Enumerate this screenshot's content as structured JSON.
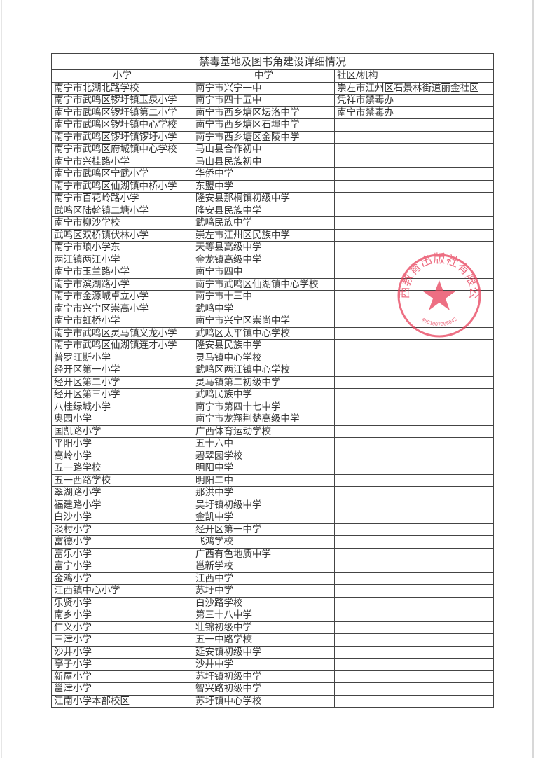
{
  "title": "禁毒基地及图书角建设详细情况",
  "headers": [
    "小学",
    "中学",
    "社区/机构"
  ],
  "rows": [
    [
      "南宁市北湖北路学校",
      "南宁市兴宁一中",
      "崇左市江州区石景林街道丽金社区"
    ],
    [
      "南宁市武鸣区锣圩镇玉泉小学",
      "南宁市四十五中",
      "凭祥市禁毒办"
    ],
    [
      "南宁市武鸣区锣圩镇第二小学",
      "南宁市西乡塘区坛洛中学",
      "南宁市禁毒办"
    ],
    [
      "南宁市武鸣区锣圩镇中心学校",
      "南宁市西乡塘区石埠中学",
      ""
    ],
    [
      "南宁市武鸣区锣圩镇锣圩小学",
      "南宁市西乡塘区金陵中学",
      ""
    ],
    [
      "南宁市武鸣区府城镇中心学校",
      "马山县合作初中",
      ""
    ],
    [
      "南宁市兴桂路小学",
      "马山县民族初中",
      ""
    ],
    [
      "南宁市武鸣区宁武小学",
      "华侨中学",
      ""
    ],
    [
      "南宁市武鸣区仙湖镇中桥小学",
      "东盟中学",
      ""
    ],
    [
      "南宁市百花岭路小学",
      "隆安县那桐镇初级中学",
      ""
    ],
    [
      "武鸣区陆斡镇二塘小学",
      "隆安县民族中学",
      ""
    ],
    [
      "南宁市柳沙学校",
      "武鸣民族中学",
      ""
    ],
    [
      "武鸣区双桥镇伏林小学",
      "崇左市江州区民族中学",
      ""
    ],
    [
      "南宁市琅小学东",
      "天等县高级中学",
      ""
    ],
    [
      "两江镇两江小学",
      "金龙镇高级中学",
      ""
    ],
    [
      "南宁市玉兰路小学",
      "南宁市四中",
      ""
    ],
    [
      "南宁市滨湖路小学",
      "南宁市武鸣区仙湖镇中心学校",
      ""
    ],
    [
      "南宁市金源城卓立小学",
      "南宁市十三中",
      ""
    ],
    [
      "南宁市兴宁区崇高小学",
      "武鸣中学",
      ""
    ],
    [
      "南宁市虹桥小学",
      "南宁市兴宁区崇尚中学",
      ""
    ],
    [
      "南宁市武鸣区灵马镇义龙小学",
      "武鸣区太平镇中心学校",
      ""
    ],
    [
      "南宁市武鸣区仙湖镇连才小学",
      "隆安县民族中学",
      ""
    ],
    [
      "普罗旺斯小学",
      "灵马镇中心学校",
      ""
    ],
    [
      "经开区第一小学",
      "武鸣区两江镇中心学校",
      ""
    ],
    [
      "经开区第二小学",
      "灵马镇第二初级中学",
      ""
    ],
    [
      "经开区第三小学",
      "武鸣民族中学",
      ""
    ],
    [
      "八桂绿城小学",
      "南宁市第四十七中学",
      ""
    ],
    [
      "奥园小学",
      "南宁市龙翔荆楚高级中学",
      ""
    ],
    [
      "国凯路小学",
      "广西体育运动学校",
      ""
    ],
    [
      "平阳小学",
      "五十六中",
      ""
    ],
    [
      "高岭小学",
      "碧翠园学校",
      ""
    ],
    [
      "五一路学校",
      "明阳中学",
      ""
    ],
    [
      "五一西路学校",
      "明阳二中",
      ""
    ],
    [
      "翠湖路小学",
      "那洪中学",
      ""
    ],
    [
      "福建路小学",
      "吴圩镇初级中学",
      ""
    ],
    [
      "白沙小学",
      "金凯中学",
      ""
    ],
    [
      "淡村小学",
      "经开区第一中学",
      ""
    ],
    [
      "富德小学",
      "飞鸿学校",
      ""
    ],
    [
      "富乐小学",
      "广西有色地质中学",
      ""
    ],
    [
      "富宁小学",
      "邕新学校",
      ""
    ],
    [
      "金鸡小学",
      "江西中学",
      ""
    ],
    [
      "江西镇中心小学",
      "苏圩中学",
      ""
    ],
    [
      "乐贤小学",
      "白沙路学校",
      ""
    ],
    [
      "南乡小学",
      "第三十八中学",
      ""
    ],
    [
      "仁义小学",
      "壮锦初级中学",
      ""
    ],
    [
      "三津小学",
      "五一中路学校",
      ""
    ],
    [
      "沙井小学",
      "延安镇初级中学",
      ""
    ],
    [
      "亭子小学",
      "沙井中学",
      ""
    ],
    [
      "新屋小学",
      "苏圩镇初级中学",
      ""
    ],
    [
      "邕津小学",
      "智兴路初级中学",
      ""
    ],
    [
      "江南小学本部校区",
      "苏圩镇中心学校",
      ""
    ]
  ],
  "stamp": {
    "text": "广西教育出版社有限公司",
    "number": "4501007008042",
    "color": "#e8405a"
  }
}
